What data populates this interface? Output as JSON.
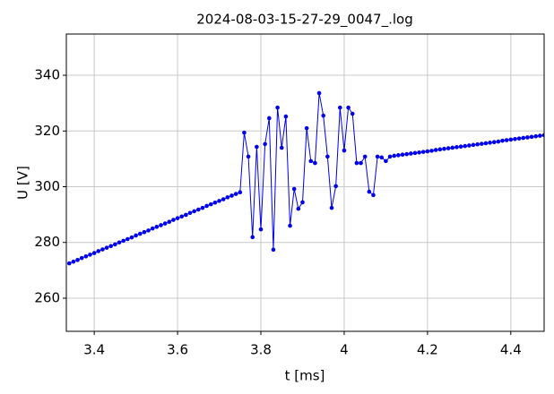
{
  "chart_data": {
    "type": "line",
    "title": "2024-08-03-15-27-29_0047_.log",
    "x_label": "t [ms]",
    "y_label": "U [V]",
    "x": [
      3.34,
      3.35,
      3.36,
      3.37,
      3.38,
      3.39,
      3.4,
      3.41,
      3.42,
      3.43,
      3.44,
      3.45,
      3.46,
      3.47,
      3.48,
      3.49,
      3.5,
      3.51,
      3.52,
      3.53,
      3.54,
      3.55,
      3.56,
      3.57,
      3.58,
      3.59,
      3.6,
      3.61,
      3.62,
      3.63,
      3.64,
      3.65,
      3.66,
      3.67,
      3.68,
      3.69,
      3.7,
      3.71,
      3.72,
      3.73,
      3.74,
      3.75,
      3.76,
      3.77,
      3.78,
      3.79,
      3.8,
      3.81,
      3.82,
      3.83,
      3.84,
      3.85,
      3.86,
      3.87,
      3.88,
      3.89,
      3.9,
      3.91,
      3.92,
      3.93,
      3.94,
      3.95,
      3.96,
      3.97,
      3.98,
      3.99,
      4.0,
      4.01,
      4.02,
      4.03,
      4.04,
      4.05,
      4.06,
      4.07,
      4.08,
      4.09,
      4.1,
      4.11,
      4.12,
      4.13,
      4.14,
      4.15,
      4.16,
      4.17,
      4.18,
      4.19,
      4.2,
      4.21,
      4.22,
      4.23,
      4.24,
      4.25,
      4.26,
      4.27,
      4.28,
      4.29,
      4.3,
      4.31,
      4.32,
      4.33,
      4.34,
      4.35,
      4.36,
      4.37,
      4.38,
      4.39,
      4.4,
      4.41,
      4.42,
      4.43,
      4.44,
      4.45,
      4.46,
      4.47,
      4.48
    ],
    "series": [
      {
        "color": "#0000ee",
        "values": [
          272.5,
          273.1,
          273.7,
          274.4,
          275.0,
          275.6,
          276.2,
          276.9,
          277.5,
          278.1,
          278.7,
          279.3,
          280.0,
          280.6,
          281.2,
          281.8,
          282.5,
          283.1,
          283.7,
          284.3,
          285.0,
          285.6,
          286.2,
          286.8,
          287.4,
          288.1,
          288.7,
          289.3,
          289.9,
          290.6,
          291.2,
          291.8,
          292.4,
          293.1,
          293.7,
          294.3,
          294.9,
          295.5,
          296.2,
          296.8,
          297.4,
          298.0,
          319.4,
          310.8,
          281.9,
          314.3,
          284.7,
          315.3,
          324.6,
          277.4,
          328.4,
          314.0,
          325.2,
          286.0,
          299.2,
          292.1,
          294.4,
          321.0,
          309.2,
          308.5,
          333.6,
          325.5,
          310.8,
          292.4,
          300.2,
          328.4,
          313.0,
          328.4,
          326.2,
          308.5,
          308.5,
          310.8,
          298.2,
          297.0,
          310.8,
          310.5,
          309.2,
          310.8,
          311.1,
          311.3,
          311.5,
          311.7,
          311.9,
          312.1,
          312.3,
          312.5,
          312.7,
          312.9,
          313.2,
          313.4,
          313.6,
          313.8,
          314.0,
          314.2,
          314.4,
          314.6,
          314.8,
          315.0,
          315.2,
          315.4,
          315.6,
          315.8,
          316.0,
          316.2,
          316.5,
          316.7,
          316.9,
          317.1,
          317.3,
          317.5,
          317.7,
          317.9,
          318.1,
          318.3,
          318.5
        ]
      }
    ],
    "xlim": [
      3.333,
      4.48
    ],
    "ylim": [
      248.1,
      354.8
    ],
    "xticks": [
      3.4,
      3.6,
      3.8,
      4,
      4.2,
      4.4
    ],
    "yticks": [
      260,
      280,
      300,
      320,
      340
    ],
    "grid": true
  }
}
